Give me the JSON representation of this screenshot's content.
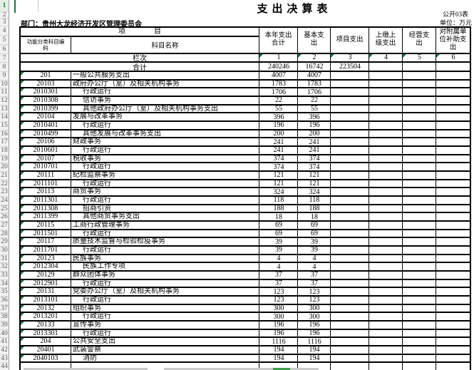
{
  "header": {
    "title": "支出决算表",
    "doc_no": "公开03表",
    "unit": "单位：万元",
    "department": "部门：贵州大龙经济开发区管理委员会"
  },
  "table": {
    "project_header": "项　　　　目",
    "code_label": "功能分类科目编\n码",
    "name_label": "科目名称",
    "amount_headers": [
      "本年支出\n合计",
      "基本支\n出",
      "项目支出",
      "上缴上\n级支出",
      "经营支\n出",
      "对附属单\n位补助支\n出"
    ],
    "lanci_label": "栏次",
    "lanci_numbers": [
      "1",
      "2",
      "3",
      "4",
      "5",
      "6"
    ],
    "total_label": "合计",
    "total_values": [
      "240246",
      "16742",
      "223504",
      "",
      "",
      ""
    ],
    "rows": [
      {
        "code": "201",
        "name": "一般公共服务支出",
        "values": [
          "4007",
          "4007"
        ]
      },
      {
        "code": "20103",
        "name": "政府办公厅（室）及相关机构事务",
        "values": [
          "1783",
          "1783"
        ]
      },
      {
        "code": "2010301",
        "name": "行政运行",
        "values": [
          "1706",
          "1706"
        ]
      },
      {
        "code": "2010308",
        "name": "信访事务",
        "values": [
          "22",
          "22"
        ]
      },
      {
        "code": "2010399",
        "name": "其他政府办公厅（室）及相关机构事务支出",
        "values": [
          "55",
          "55"
        ]
      },
      {
        "code": "20104",
        "name": "发展与改革事务",
        "values": [
          "396",
          "396"
        ]
      },
      {
        "code": "2010401",
        "name": "行政运行",
        "values": [
          "196",
          "196"
        ]
      },
      {
        "code": "2010499",
        "name": "其他发展与改革事务支出",
        "values": [
          "200",
          "200"
        ]
      },
      {
        "code": "20106",
        "name": "财政事务",
        "values": [
          "241",
          "241"
        ]
      },
      {
        "code": "2010601",
        "name": "行政运行",
        "values": [
          "241",
          "241"
        ]
      },
      {
        "code": "20107",
        "name": "税收事务",
        "values": [
          "374",
          "374"
        ]
      },
      {
        "code": "2010701",
        "name": "行政运行",
        "values": [
          "374",
          "374"
        ]
      },
      {
        "code": "20111",
        "name": "纪检监察事务",
        "values": [
          "121",
          "121"
        ]
      },
      {
        "code": "2011101",
        "name": "行政运行",
        "values": [
          "121",
          "121"
        ]
      },
      {
        "code": "20113",
        "name": "商贸事务",
        "values": [
          "324",
          "324"
        ]
      },
      {
        "code": "2011301",
        "name": "行政运行",
        "values": [
          "118",
          "118"
        ]
      },
      {
        "code": "2011308",
        "name": "招商引资",
        "values": [
          "188",
          "188"
        ]
      },
      {
        "code": "2011399",
        "name": "其他商贸事务支出",
        "values": [
          "18",
          "18"
        ]
      },
      {
        "code": "20115",
        "name": "工商行政管理事务",
        "values": [
          "69",
          "69"
        ]
      },
      {
        "code": "2011501",
        "name": "行政运行",
        "values": [
          "69",
          "69"
        ]
      },
      {
        "code": "20117",
        "name": "质量技术监督与检验检疫事务",
        "values": [
          "39",
          "39"
        ]
      },
      {
        "code": "2011701",
        "name": "行政运行",
        "values": [
          "39",
          "39"
        ]
      },
      {
        "code": "20123",
        "name": "民族事务",
        "values": [
          "4",
          "4"
        ]
      },
      {
        "code": "2012304",
        "name": "民族工作专项",
        "values": [
          "4",
          "4"
        ]
      },
      {
        "code": "20129",
        "name": "群众团体事务",
        "values": [
          "37",
          "37"
        ]
      },
      {
        "code": "2012901",
        "name": "行政运行",
        "values": [
          "37",
          "37"
        ]
      },
      {
        "code": "20131",
        "name": "党委办公厅（室）及相关机构事务",
        "values": [
          "123",
          "123"
        ]
      },
      {
        "code": "2013101",
        "name": "行政运行",
        "values": [
          "123",
          "123"
        ]
      },
      {
        "code": "20132",
        "name": "组织事务",
        "values": [
          "300",
          "300"
        ]
      },
      {
        "code": "2013201",
        "name": "行政运行",
        "values": [
          "300",
          "300"
        ]
      },
      {
        "code": "20133",
        "name": "宣传事务",
        "values": [
          "196",
          "196"
        ]
      },
      {
        "code": "2013301",
        "name": "行政运行",
        "values": [
          "196",
          "196"
        ]
      },
      {
        "code": "204",
        "name": "公共安全支出",
        "values": [
          "1116",
          "1116"
        ]
      },
      {
        "code": "20401",
        "name": "武装警察",
        "values": [
          "194",
          "194"
        ]
      },
      {
        "code": "2040103",
        "name": "消防",
        "values": [
          "194",
          "194"
        ]
      }
    ]
  },
  "colors": {
    "triangle_green": "#1e7145",
    "selection_green": "#217346",
    "border_black": "#000000"
  }
}
